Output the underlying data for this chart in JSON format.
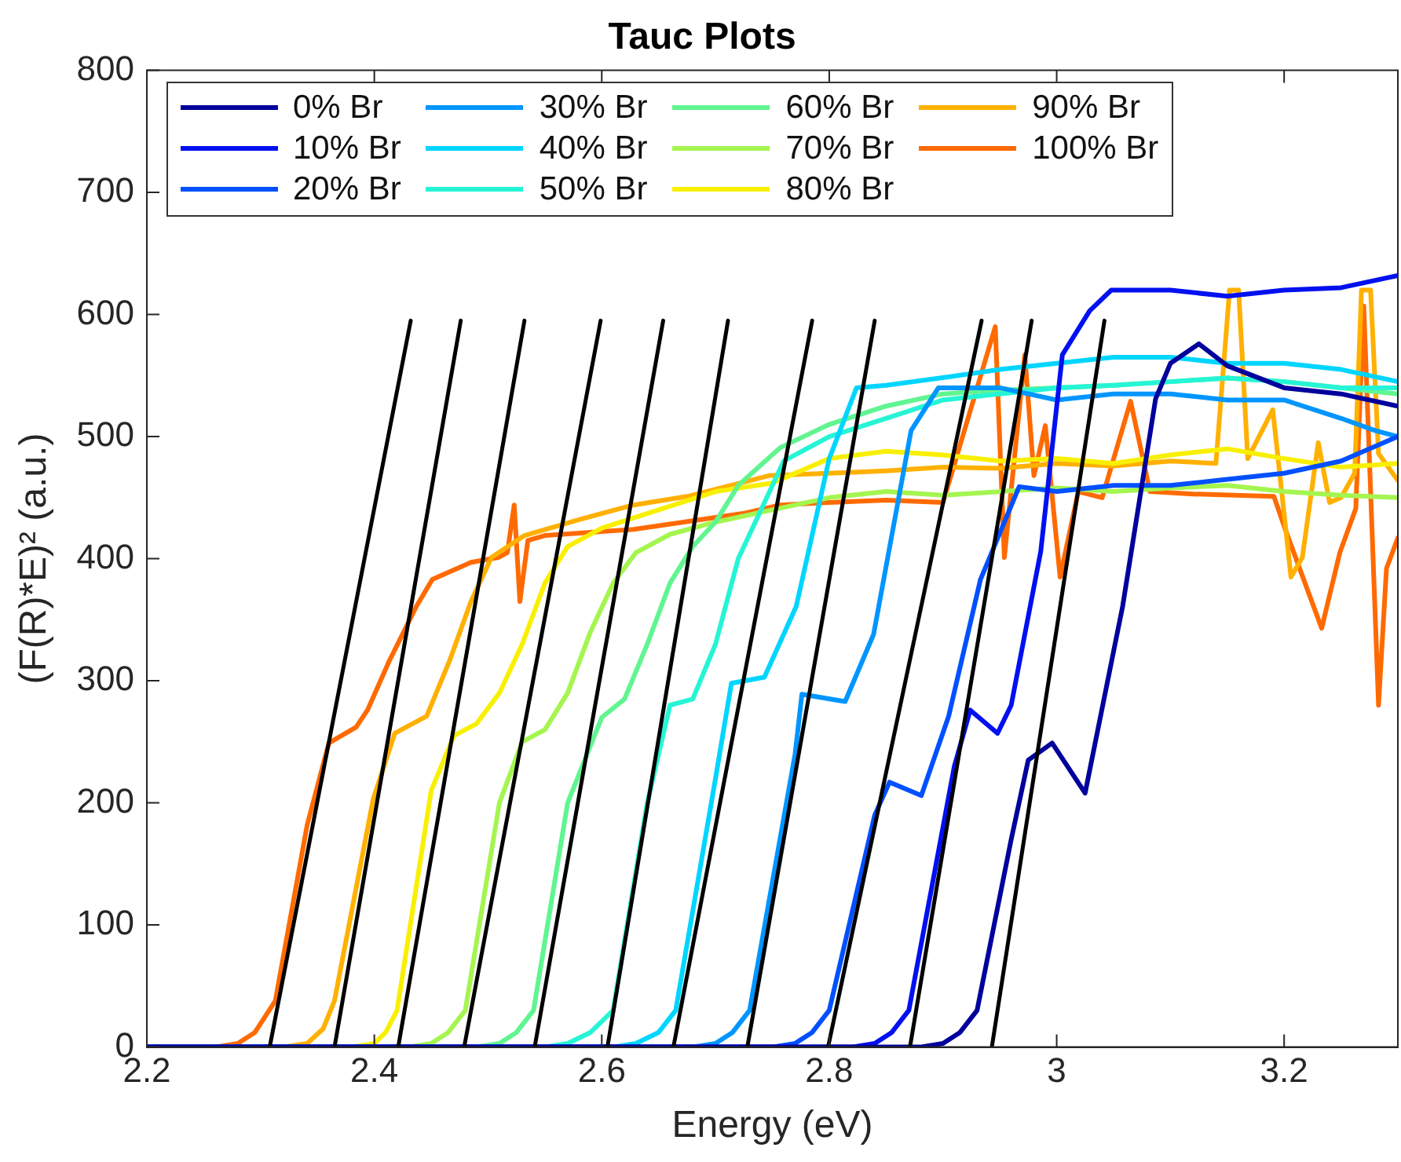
{
  "chart_data": {
    "type": "line",
    "title": "Tauc Plots",
    "xlabel": "Energy (eV)",
    "ylabel": "(F(R)*E)² (a.u.)",
    "xlim": [
      2.2,
      3.3
    ],
    "xticks": [
      2.2,
      2.4,
      2.6,
      2.8,
      3,
      3.2
    ],
    "ylim": [
      0,
      800
    ],
    "yticks": [
      0,
      100,
      200,
      300,
      400,
      500,
      600,
      700,
      800
    ],
    "grid": false,
    "legend": "top",
    "marker": "none",
    "line_style": "solid",
    "series": [
      {
        "name": "0% Br",
        "color": "#00009c",
        "x": [
          2.2,
          2.88,
          2.9,
          2.915,
          2.93,
          2.96,
          2.975,
          2.996,
          3.025,
          3.058,
          3.087,
          3.1,
          3.125,
          3.15,
          3.2,
          3.25,
          3.3
        ],
        "values": [
          0,
          0,
          3,
          12,
          30,
          170,
          235,
          249,
          208,
          361,
          531,
          560,
          576,
          558,
          540,
          535,
          525
        ]
      },
      {
        "name": "10% Br",
        "color": "#0010f0",
        "x": [
          2.2,
          2.82,
          2.84,
          2.855,
          2.87,
          2.91,
          2.924,
          2.948,
          2.96,
          2.986,
          3.005,
          3.029,
          3.048,
          3.1,
          3.15,
          3.2,
          3.25,
          3.3
        ],
        "values": [
          0,
          0,
          3,
          12,
          30,
          230,
          276,
          257,
          280,
          406,
          567,
          603,
          620,
          620,
          615,
          620,
          622,
          632
        ]
      },
      {
        "name": "20% Br",
        "color": "#0050ff",
        "x": [
          2.2,
          2.75,
          2.77,
          2.785,
          2.8,
          2.84,
          2.853,
          2.881,
          2.905,
          2.933,
          2.967,
          3,
          3.05,
          3.1,
          3.15,
          3.2,
          3.25,
          3.3
        ],
        "values": [
          0,
          0,
          3,
          12,
          30,
          190,
          217,
          206,
          271,
          383,
          459,
          455,
          460,
          460,
          465,
          470,
          480,
          500
        ]
      },
      {
        "name": "30% Br",
        "color": "#0095ff",
        "x": [
          2.2,
          2.68,
          2.7,
          2.715,
          2.73,
          2.77,
          2.776,
          2.814,
          2.839,
          2.872,
          2.896,
          2.95,
          3,
          3.05,
          3.1,
          3.15,
          3.2,
          3.25,
          3.28,
          3.3
        ],
        "values": [
          0,
          0,
          3,
          12,
          30,
          240,
          289,
          283,
          338,
          505,
          540,
          540,
          530,
          535,
          535,
          530,
          530,
          515,
          505,
          500
        ]
      },
      {
        "name": "40% Br",
        "color": "#00d5ff",
        "x": [
          2.2,
          2.61,
          2.63,
          2.65,
          2.665,
          2.7,
          2.714,
          2.743,
          2.771,
          2.8,
          2.824,
          2.85,
          2.905,
          2.95,
          3,
          3.05,
          3.1,
          3.15,
          3.2,
          3.25,
          3.3
        ],
        "values": [
          0,
          0,
          3,
          12,
          30,
          220,
          298,
          303,
          361,
          482,
          540,
          542,
          549,
          555,
          560,
          565,
          565,
          560,
          560,
          555,
          545
        ]
      },
      {
        "name": "50% Br",
        "color": "#25f5d5",
        "x": [
          2.2,
          2.55,
          2.57,
          2.59,
          2.61,
          2.64,
          2.66,
          2.68,
          2.7,
          2.72,
          2.74,
          2.76,
          2.8,
          2.85,
          2.9,
          2.95,
          3,
          3.05,
          3.1,
          3.15,
          3.2,
          3.25,
          3.3
        ],
        "values": [
          0,
          0,
          3,
          12,
          30,
          200,
          280,
          285,
          330,
          400,
          440,
          480,
          500,
          515,
          530,
          535,
          540,
          542,
          545,
          548,
          545,
          540,
          540
        ]
      },
      {
        "name": "60% Br",
        "color": "#60f590",
        "x": [
          2.2,
          2.49,
          2.51,
          2.525,
          2.54,
          2.57,
          2.6,
          2.62,
          2.64,
          2.66,
          2.68,
          2.7,
          2.72,
          2.757,
          2.8,
          2.85,
          2.9,
          2.95,
          3,
          3.05,
          3.1,
          3.15,
          3.2,
          3.25,
          3.3
        ],
        "values": [
          0,
          0,
          3,
          12,
          30,
          200,
          270,
          285,
          330,
          380,
          410,
          430,
          460,
          491,
          510,
          525,
          535,
          538,
          540,
          542,
          545,
          548,
          545,
          540,
          535
        ]
      },
      {
        "name": "70% Br",
        "color": "#a5f550",
        "x": [
          2.2,
          2.43,
          2.45,
          2.465,
          2.48,
          2.51,
          2.53,
          2.55,
          2.57,
          2.59,
          2.61,
          2.63,
          2.66,
          2.7,
          2.75,
          2.8,
          2.85,
          2.9,
          2.95,
          3,
          3.05,
          3.1,
          3.15,
          3.2,
          3.25,
          3.3
        ],
        "values": [
          0,
          0,
          3,
          12,
          30,
          200,
          250,
          260,
          290,
          340,
          380,
          405,
          420,
          430,
          440,
          450,
          455,
          452,
          455,
          458,
          455,
          458,
          460,
          455,
          452,
          450
        ]
      },
      {
        "name": "80% Br",
        "color": "#f8f000",
        "x": [
          2.2,
          2.38,
          2.4,
          2.41,
          2.42,
          2.45,
          2.47,
          2.49,
          2.51,
          2.53,
          2.55,
          2.57,
          2.6,
          2.65,
          2.7,
          2.75,
          2.8,
          2.85,
          2.9,
          2.95,
          3,
          3.05,
          3.1,
          3.15,
          3.2,
          3.25,
          3.3
        ],
        "values": [
          0,
          0,
          3,
          12,
          30,
          210,
          255,
          265,
          290,
          330,
          380,
          410,
          425,
          440,
          455,
          462,
          482,
          488,
          485,
          480,
          482,
          478,
          485,
          490,
          482,
          475,
          478
        ]
      },
      {
        "name": "90% Br",
        "color": "#ffb000",
        "x": [
          2.2,
          2.32,
          2.341,
          2.355,
          2.365,
          2.399,
          2.418,
          2.428,
          2.446,
          2.466,
          2.485,
          2.503,
          2.532,
          2.58,
          2.628,
          2.675,
          2.747,
          2.8,
          2.85,
          2.9,
          2.95,
          3,
          3.05,
          3.1,
          3.14,
          3.152,
          3.16,
          3.168,
          3.19,
          3.206,
          3.216,
          3.23,
          3.24,
          3.25,
          3.262,
          3.268,
          3.276,
          3.283,
          3.3
        ],
        "values": [
          0,
          0,
          3,
          15,
          38,
          203,
          257,
          262,
          271,
          316,
          365,
          401,
          419,
          432,
          444,
          451,
          468,
          470,
          472,
          475,
          474,
          478,
          476,
          480,
          478,
          620,
          620,
          482,
          522,
          385,
          401,
          495,
          446,
          450,
          470,
          620,
          620,
          486,
          464
        ]
      },
      {
        "name": "100% Br",
        "color": "#ff6a00",
        "x": [
          2.2,
          2.26,
          2.28,
          2.295,
          2.313,
          2.341,
          2.36,
          2.384,
          2.394,
          2.413,
          2.437,
          2.451,
          2.485,
          2.509,
          2.517,
          2.523,
          2.528,
          2.535,
          2.55,
          2.628,
          2.724,
          2.757,
          2.8,
          2.85,
          2.9,
          2.946,
          2.954,
          2.972,
          2.98,
          2.99,
          3.003,
          3.019,
          3.04,
          3.065,
          3.082,
          3.12,
          3.191,
          3.201,
          3.233,
          3.249,
          3.263,
          3.27,
          3.283,
          3.29,
          3.3
        ],
        "values": [
          0,
          0,
          3,
          12,
          38,
          182,
          249,
          262,
          276,
          316,
          361,
          383,
          397,
          401,
          405,
          444,
          365,
          415,
          419,
          424,
          437,
          444,
          446,
          448,
          446,
          590,
          401,
          567,
          468,
          509,
          385,
          455,
          450,
          529,
          455,
          453,
          451,
          424,
          343,
          405,
          441,
          607,
          280,
          392,
          417
        ]
      },
      {
        "type": "line",
        "color": "#000000",
        "x": [
          2.308,
          2.432
        ],
        "values": [
          0,
          595
        ]
      },
      {
        "type": "line",
        "color": "#000000",
        "x": [
          2.365,
          2.476
        ],
        "values": [
          0,
          595
        ]
      },
      {
        "type": "line",
        "color": "#000000",
        "x": [
          2.421,
          2.532
        ],
        "values": [
          0,
          595
        ]
      },
      {
        "type": "line",
        "color": "#000000",
        "x": [
          2.479,
          2.599
        ],
        "values": [
          0,
          595
        ]
      },
      {
        "type": "line",
        "color": "#000000",
        "x": [
          2.541,
          2.654
        ],
        "values": [
          0,
          595
        ]
      },
      {
        "type": "line",
        "color": "#000000",
        "x": [
          2.605,
          2.711
        ],
        "values": [
          0,
          595
        ]
      },
      {
        "type": "line",
        "color": "#000000",
        "x": [
          2.663,
          2.785
        ],
        "values": [
          0,
          595
        ]
      },
      {
        "type": "line",
        "color": "#000000",
        "x": [
          2.728,
          2.84
        ],
        "values": [
          0,
          595
        ]
      },
      {
        "type": "line",
        "color": "#000000",
        "x": [
          2.799,
          2.934
        ],
        "values": [
          0,
          595
        ]
      },
      {
        "type": "line",
        "color": "#000000",
        "x": [
          2.871,
          2.978
        ],
        "values": [
          0,
          595
        ]
      },
      {
        "type": "line",
        "color": "#000000",
        "x": [
          2.943,
          3.042
        ],
        "values": [
          0,
          595
        ]
      }
    ]
  }
}
